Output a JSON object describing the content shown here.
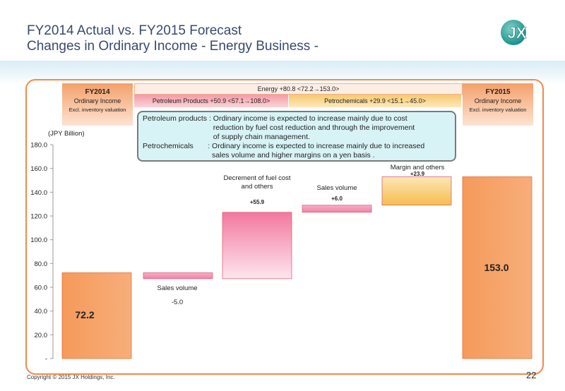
{
  "slide": {
    "title_line1": "FY2014 Actual vs. FY2015 Forecast",
    "title_line2": "Changes in Ordinary Income   - Energy Business -",
    "logo_text": "JX",
    "copyright": "Copyright © 2015 JX Holdings, Inc.",
    "page_number": "22"
  },
  "headers": {
    "fy2014": {
      "title": "FY2014",
      "line2": "Ordinary Income",
      "line3": "Excl. inventory valuation"
    },
    "fy2015": {
      "title": "FY2015",
      "line2": "Ordinary Income",
      "line3": "Excl. inventory valuation"
    },
    "energy": "Energy  +80.8 <72.2→153.0>",
    "petroleum": "Petroleum Products  +50.9 <57.1→108.0>",
    "petrochemicals": "Petrochemicals  +29.9 <15.1→45.0>"
  },
  "note": {
    "rows": [
      {
        "key": "Petroleum products : ",
        "lines": [
          "Ordinary income is expected to increase mainly due to cost",
          "reduction by fuel cost reduction and through the improvement",
          "of supply chain management."
        ]
      },
      {
        "key": "Petrochemicals       : ",
        "lines": [
          "Ordinary income is expected to increase mainly due to increased",
          "sales volume and higher margins on a yen basis ."
        ]
      }
    ]
  },
  "chart_data": {
    "type": "bar",
    "subtype": "waterfall",
    "ylabel": "(JPY Billion)",
    "ylim": [
      0,
      180
    ],
    "yticks": [
      "-",
      "20.0",
      "40.0",
      "60.0",
      "80.0",
      "100.0",
      "120.0",
      "140.0",
      "160.0",
      "180.0"
    ],
    "grid": false,
    "bars": [
      {
        "category": "FY2014",
        "kind": "total",
        "start": 0,
        "end": 72.2,
        "label": "72.2",
        "color": "#f59a5b"
      },
      {
        "category": "Sales volume",
        "kind": "delta",
        "start": 72.2,
        "end": 67.2,
        "value_label": "-5.0",
        "name_label": "Sales volume",
        "color": "#f293b3"
      },
      {
        "category": "Decrement of fuel cost and others",
        "kind": "delta",
        "start": 67.2,
        "end": 123.1,
        "value_label": "+55.9",
        "name_label": "Decrement of fuel cost and others",
        "color": "#f27fa2"
      },
      {
        "category": "Sales volume",
        "kind": "delta",
        "start": 123.1,
        "end": 129.1,
        "value_label": "+6.0",
        "name_label": "Sales volume",
        "color": "#f293b3"
      },
      {
        "category": "Margin and others",
        "kind": "delta",
        "start": 129.1,
        "end": 153.0,
        "value_label": "+23.9",
        "name_label": "Margin and others",
        "color": "#f6c052"
      },
      {
        "category": "FY2015",
        "kind": "total",
        "start": 0,
        "end": 153.0,
        "label": "153.0",
        "color": "#f59a5b"
      }
    ]
  },
  "colors": {
    "frame": "#f08a4b",
    "title": "#3a4a6b",
    "total_bar": "#f59a5b",
    "note_bg": "#d8f3f6"
  }
}
